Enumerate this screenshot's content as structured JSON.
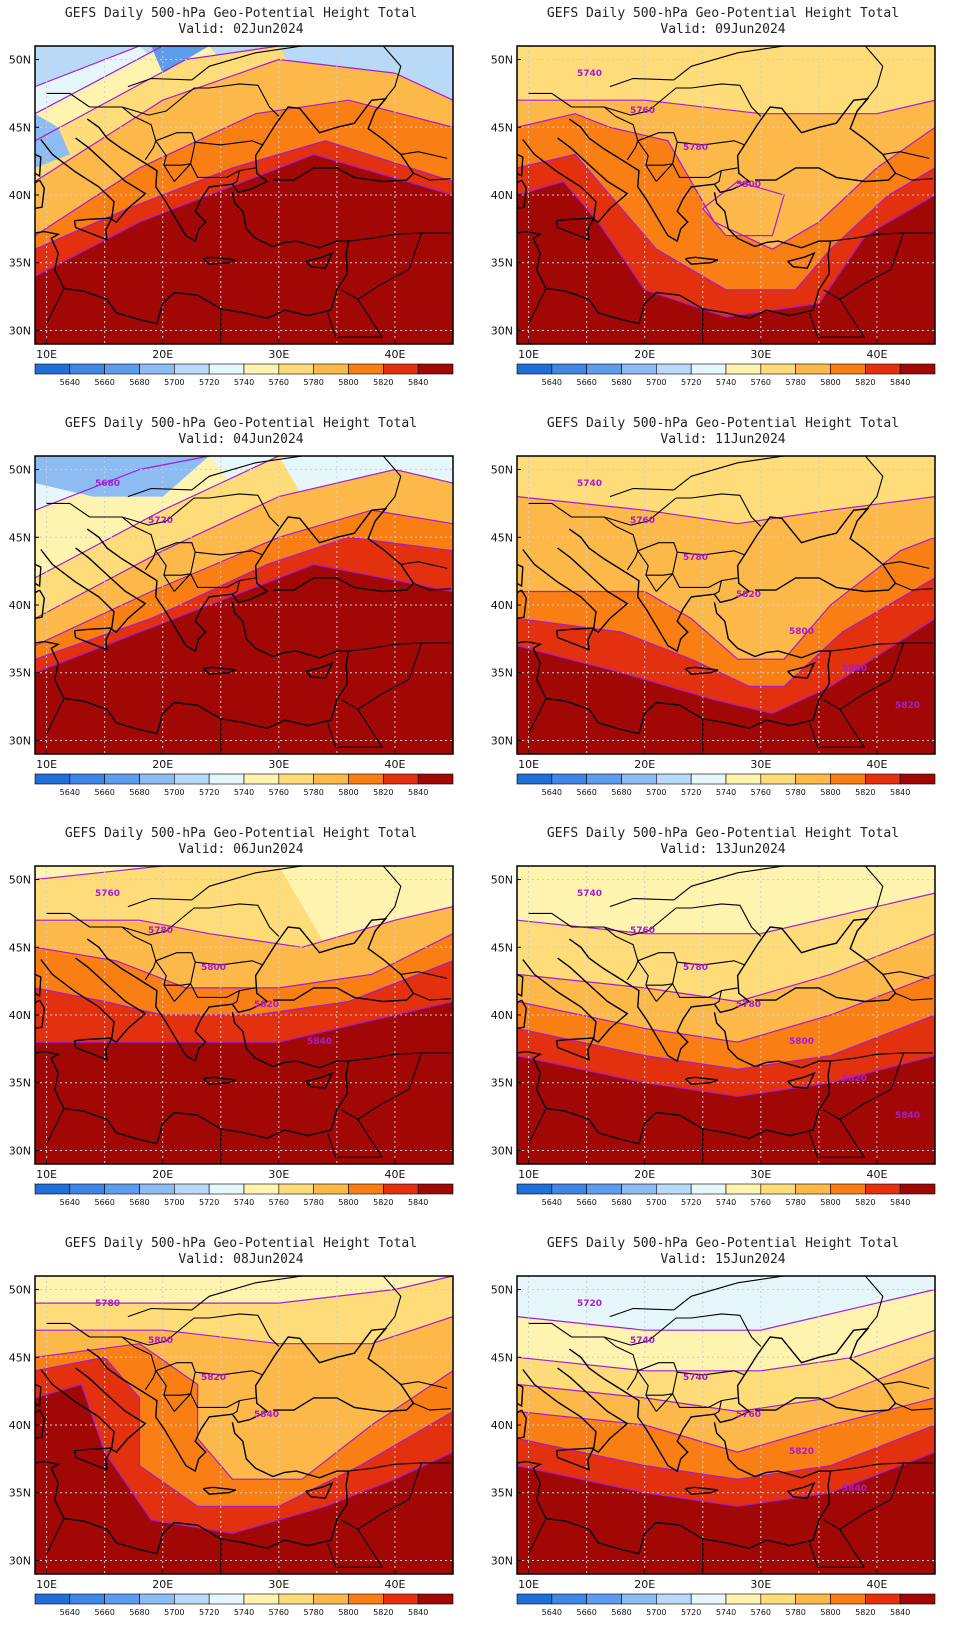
{
  "legend": {
    "levels": [
      "5640",
      "5660",
      "5680",
      "5700",
      "5720",
      "5740",
      "5760",
      "5780",
      "5800",
      "5820",
      "5840"
    ],
    "colors": [
      "#1e6fd6",
      "#3f86e6",
      "#5e9cec",
      "#8dbcf2",
      "#b8d9f7",
      "#e6f7fb",
      "#fff3b0",
      "#fedc7a",
      "#fdb84a",
      "#f97f14",
      "#e3300e",
      "#a10805"
    ]
  },
  "axes": {
    "lat_labels": [
      "50N",
      "45N",
      "40N",
      "35N",
      "30N"
    ],
    "lon_labels": [
      "10E",
      "20E",
      "30E",
      "40E"
    ]
  },
  "panels": [
    {
      "title": "GEFS Daily 500-hPa Geo-Potential Height Total",
      "valid": "Valid: 02Jun2024",
      "contour_labels": []
    },
    {
      "title": "GEFS Daily 500-hPa Geo-Potential Height Total",
      "valid": "Valid: 09Jun2024",
      "contour_labels": [
        "5740",
        "5760",
        "5780",
        "5800"
      ]
    },
    {
      "title": "GEFS Daily 500-hPa Geo-Potential Height Total",
      "valid": "Valid: 04Jun2024",
      "contour_labels": [
        "5680",
        "5720"
      ]
    },
    {
      "title": "GEFS Daily 500-hPa Geo-Potential Height Total",
      "valid": "Valid: 11Jun2024",
      "contour_labels": [
        "5740",
        "5760",
        "5780",
        "5820",
        "5800",
        "5800",
        "5820"
      ]
    },
    {
      "title": "GEFS Daily 500-hPa Geo-Potential Height Total",
      "valid": "Valid: 06Jun2024",
      "contour_labels": [
        "5760",
        "5780",
        "5800",
        "5820",
        "5840"
      ]
    },
    {
      "title": "GEFS Daily 500-hPa Geo-Potential Height Total",
      "valid": "Valid: 13Jun2024",
      "contour_labels": [
        "5740",
        "5760",
        "5780",
        "5780",
        "5800",
        "5820",
        "5840"
      ]
    },
    {
      "title": "GEFS Daily 500-hPa Geo-Potential Height Total",
      "valid": "Valid: 08Jun2024",
      "contour_labels": [
        "5780",
        "5800",
        "5820",
        "5840"
      ]
    },
    {
      "title": "GEFS Daily 500-hPa Geo-Potential Height Total",
      "valid": "Valid: 15Jun2024",
      "contour_labels": [
        "5720",
        "5740",
        "5740",
        "5760",
        "5820",
        "5840"
      ]
    }
  ]
}
